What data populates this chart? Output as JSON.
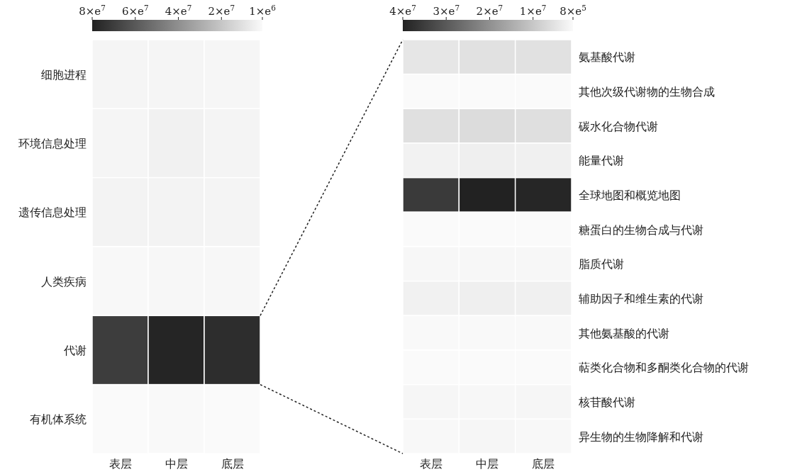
{
  "chart_data": [
    {
      "type": "heatmap",
      "categories": [
        "表层",
        "中层",
        "底层"
      ],
      "y_categories": [
        "细胞进程",
        "环境信息处理",
        "遗传信息处理",
        "人类疾病",
        "代谢",
        "有机体系统"
      ],
      "cells": [
        [
          2800000,
          2800000,
          2500000
        ],
        [
          2800000,
          4300000,
          3200000
        ],
        [
          3600000,
          3600000,
          3200000
        ],
        [
          1700000,
          2100000,
          2100000
        ],
        [
          70000000,
          79000000,
          76000000
        ],
        [
          1000000,
          1400000,
          1000000
        ]
      ],
      "clim": [
        80000000,
        1000000
      ],
      "cticks": [
        {
          "value": 80000000,
          "label": "8×e$^{7}$"
        },
        {
          "value": 60000000,
          "label": "6×e$^{7}$"
        },
        {
          "value": 40000000,
          "label": "4×e$^{7}$"
        },
        {
          "value": 20000000,
          "label": "2×e$^{7}$"
        },
        {
          "value": 1000000,
          "label": "1×e$^{6}$"
        }
      ]
    },
    {
      "type": "heatmap",
      "categories": [
        "表层",
        "中层",
        "底层"
      ],
      "y_categories": [
        "氨基酸代谢",
        "其他次级代谢物的生物合成",
        "碳水化合物代谢",
        "能量代谢",
        "全球地图和概览地图",
        "糖蛋白的生物合成与代谢",
        "脂质代谢",
        "辅助因子和维生素的代谢",
        "其他氨基酸的代谢",
        "萜类化合物和多酮类化合物的代谢",
        "核苷酸代谢",
        "异生物的生物降解和代谢"
      ],
      "cells": [
        [
          4400000,
          5300000,
          5300000
        ],
        [
          800000,
          800000,
          800000
        ],
        [
          5500000,
          6200000,
          5700000
        ],
        [
          2300000,
          2800000,
          2600000
        ],
        [
          35600000,
          40000000,
          39300000
        ],
        [
          800000,
          800000,
          800000
        ],
        [
          1300000,
          1300000,
          1300000
        ],
        [
          2400000,
          2800000,
          2600000
        ],
        [
          1000000,
          1000000,
          1000000
        ],
        [
          800000,
          800000,
          800000
        ],
        [
          1500000,
          1300000,
          1500000
        ],
        [
          1200000,
          1500000,
          1200000
        ]
      ],
      "clim": [
        40000000,
        800000
      ],
      "cticks": [
        {
          "value": 40000000,
          "label": "4×e$^{7}$"
        },
        {
          "value": 30000000,
          "label": "3×e$^{7}$"
        },
        {
          "value": 20000000,
          "label": "2×e$^{7}$"
        },
        {
          "value": 10000000,
          "label": "1×e$^{7}$"
        },
        {
          "value": 800000,
          "label": "8×e$^{5}$"
        }
      ]
    }
  ]
}
